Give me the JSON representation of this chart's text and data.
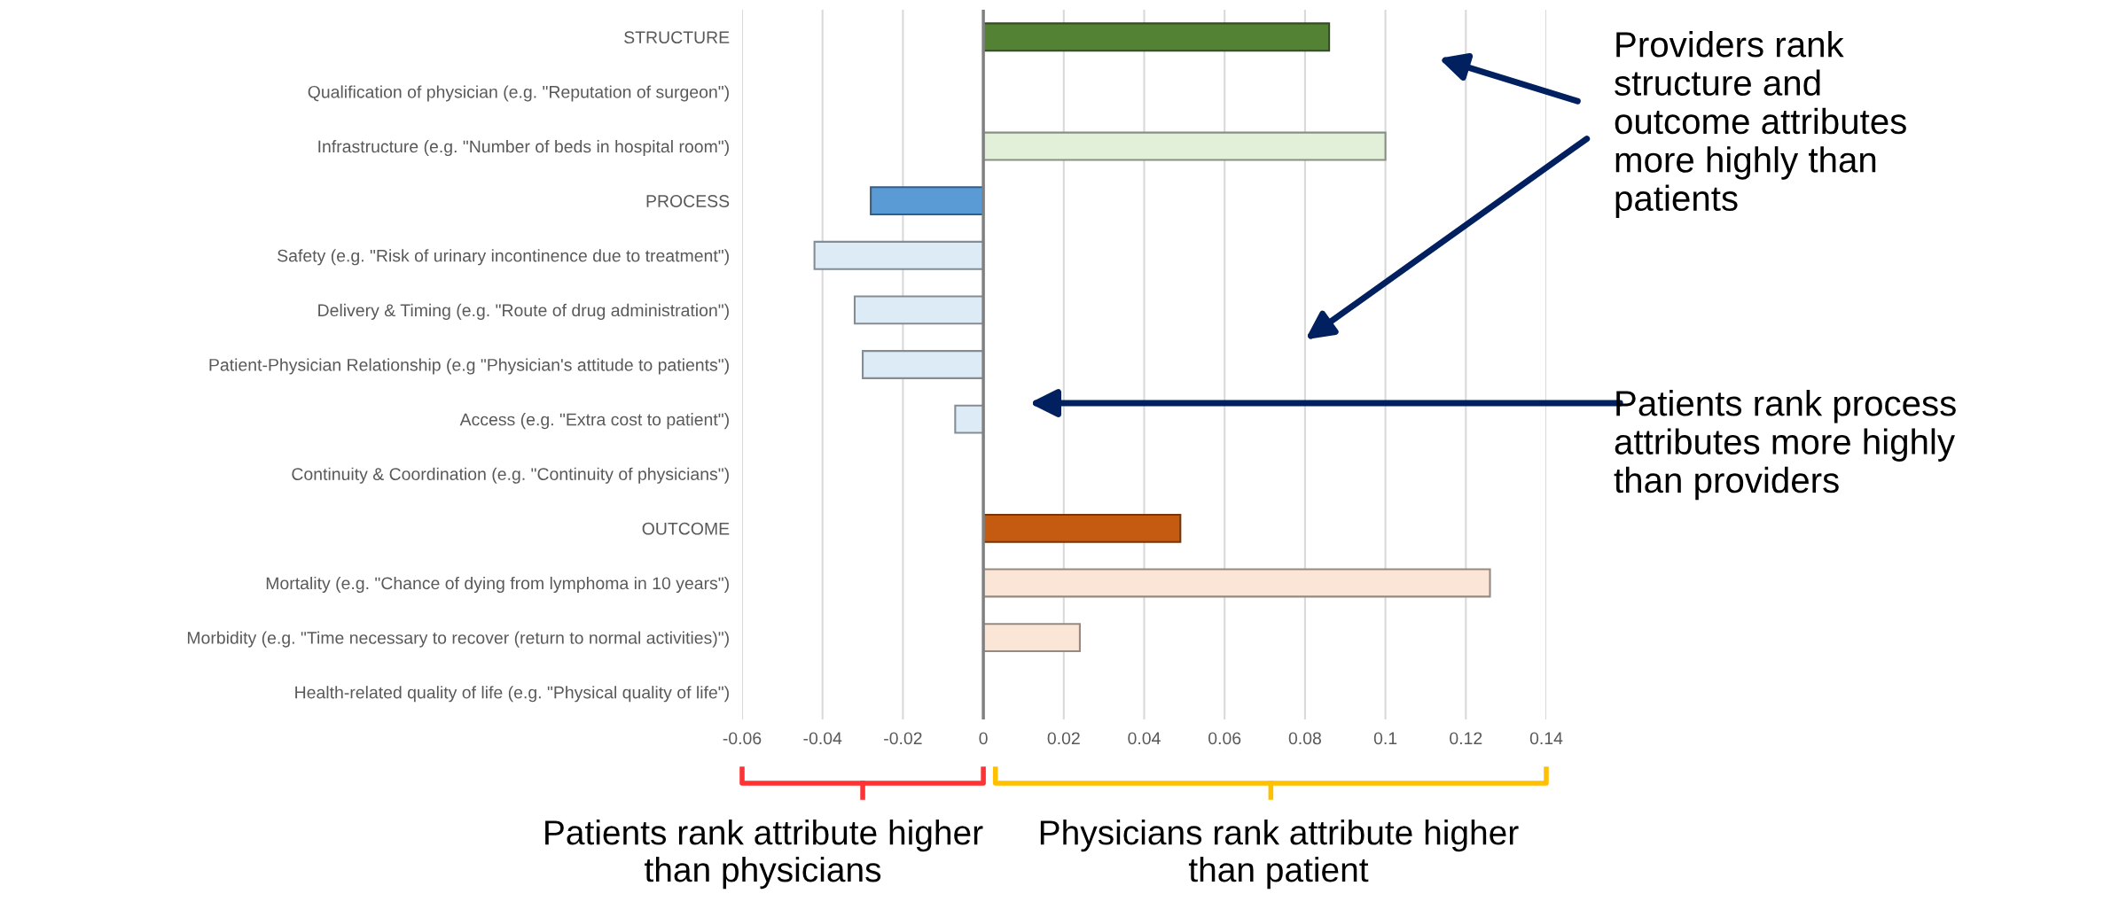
{
  "chart_data": {
    "type": "bar",
    "orientation": "horizontal",
    "categories": [
      "STRUCTURE",
      "Qualification of physician (e.g. \"Reputation of surgeon\")",
      "Infrastructure (e.g. \"Number of beds in hospital room\")",
      "PROCESS",
      "Safety (e.g. \"Risk of urinary incontinence due to treatment\")",
      "Delivery & Timing (e.g. \"Route of drug administration\")",
      "Patient-Physician Relationship (e.g \"Physician's attitude to patients\")",
      "Access (e.g. \"Extra cost to patient\")",
      "Continuity & Coordination (e.g. \"Continuity of physicians\")",
      "OUTCOME",
      "Mortality (e.g. \"Chance of dying from lymphoma in 10 years\")",
      "Morbidity (e.g. \"Time necessary to recover (return to normal activities)\")",
      "Health-related quality of life (e.g. \"Physical quality of life\")"
    ],
    "values": [
      0.086,
      null,
      0.1,
      -0.028,
      -0.042,
      -0.032,
      -0.03,
      -0.007,
      null,
      0.049,
      0.126,
      0.024,
      null
    ],
    "colors": [
      "#548235",
      "#e2f0d9",
      "#e2f0d9",
      "#5b9bd5",
      "#ddebf7",
      "#ddebf7",
      "#ddebf7",
      "#ddebf7",
      "#ddebf7",
      "#c55a11",
      "#fbe5d6",
      "#fbe5d6",
      "#fbe5d6"
    ],
    "xlim": [
      -0.06,
      0.14
    ],
    "xticks": [
      -0.06,
      -0.04,
      -0.02,
      0,
      0.02,
      0.04,
      0.06,
      0.08,
      0.1,
      0.12,
      0.14
    ],
    "grid": "x",
    "annotations": [
      "Providers rank\nstructure and\noutcome attributes\nmore highly than\npatients",
      "Patients rank process\nattributes more highly\nthan providers",
      "Patients rank attribute higher\nthan physicians",
      "Physicians rank attribute higher\nthan patient"
    ]
  }
}
